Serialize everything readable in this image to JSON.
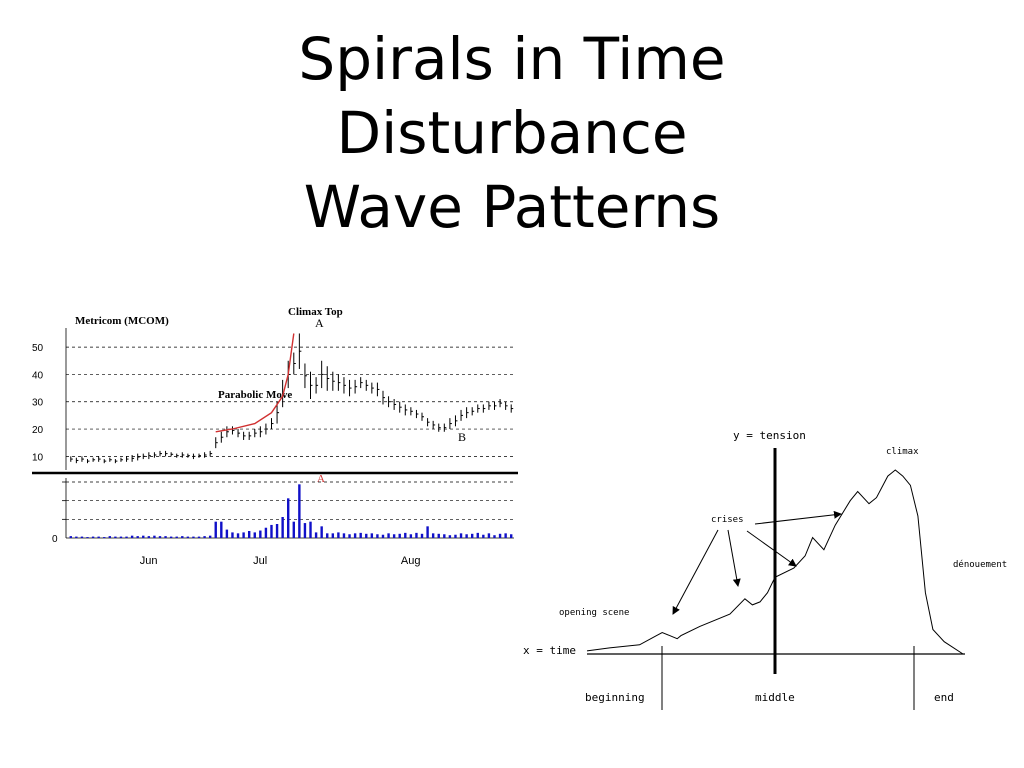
{
  "slide": {
    "title_lines": [
      "Spirals in Time",
      "Disturbance",
      "Wave Patterns"
    ]
  },
  "colors": {
    "price_bars": "#000000",
    "parabolic_curve": "#d03030",
    "volume_bars": "#1010c8",
    "grid": "#000000",
    "annotation_red": "#d03030"
  },
  "chart_data": [
    {
      "type": "bar",
      "subtype": "stock price range chart with volume",
      "title": "Metricom (MCOM)",
      "ylim": [
        5,
        57
      ],
      "yticks": [
        10,
        20,
        30,
        40,
        50
      ],
      "xlabels": [
        "Jun",
        "Jul",
        "Aug"
      ],
      "grid": true,
      "annotations": {
        "climax_top": "Climax Top",
        "point_a": "A",
        "parabolic_move": "Parabolic Move",
        "point_b": "B",
        "volume_a": "A"
      },
      "price_series": [
        [
          8,
          10
        ],
        [
          7.5,
          9.5
        ],
        [
          8,
          10
        ],
        [
          7.5,
          9
        ],
        [
          8,
          9.5
        ],
        [
          8,
          10
        ],
        [
          7.5,
          9
        ],
        [
          8,
          9.5
        ],
        [
          7.5,
          9
        ],
        [
          8,
          9.5
        ],
        [
          8,
          10
        ],
        [
          8,
          10.5
        ],
        [
          8.5,
          11
        ],
        [
          9,
          11
        ],
        [
          9,
          11.5
        ],
        [
          9.5,
          11.5
        ],
        [
          10,
          12
        ],
        [
          10,
          12
        ],
        [
          10,
          11.5
        ],
        [
          9.5,
          11
        ],
        [
          9.5,
          11.5
        ],
        [
          9.5,
          11
        ],
        [
          9,
          11
        ],
        [
          9.5,
          11
        ],
        [
          9.5,
          11.5
        ],
        [
          10,
          12
        ],
        [
          13,
          17
        ],
        [
          15,
          19
        ],
        [
          17,
          21
        ],
        [
          18,
          21
        ],
        [
          17,
          20
        ],
        [
          16,
          19
        ],
        [
          16,
          19
        ],
        [
          17,
          20
        ],
        [
          17,
          21
        ],
        [
          18,
          22
        ],
        [
          20,
          24
        ],
        [
          22,
          30
        ],
        [
          28,
          38
        ],
        [
          35,
          45
        ],
        [
          40,
          48
        ],
        [
          42,
          55
        ],
        [
          35,
          44
        ],
        [
          31,
          41
        ],
        [
          33,
          39
        ],
        [
          35,
          45
        ],
        [
          34,
          43
        ],
        [
          34,
          41
        ],
        [
          34,
          40
        ],
        [
          33,
          39
        ],
        [
          32,
          38
        ],
        [
          33,
          38
        ],
        [
          35,
          39
        ],
        [
          34,
          38
        ],
        [
          33,
          37
        ],
        [
          32,
          37
        ],
        [
          29,
          34
        ],
        [
          28,
          32
        ],
        [
          27,
          31
        ],
        [
          26,
          30
        ],
        [
          25,
          29
        ],
        [
          25,
          28
        ],
        [
          24,
          27
        ],
        [
          23,
          26
        ],
        [
          21,
          24
        ],
        [
          20,
          23
        ],
        [
          19,
          22
        ],
        [
          19,
          22
        ],
        [
          20,
          24
        ],
        [
          21,
          25
        ],
        [
          23,
          27
        ],
        [
          24,
          28
        ],
        [
          25,
          28
        ],
        [
          26,
          29
        ],
        [
          26,
          29
        ],
        [
          27,
          30
        ],
        [
          27,
          30
        ],
        [
          28,
          31
        ],
        [
          27,
          30
        ],
        [
          26,
          29
        ]
      ],
      "parabolic_curve_points": [
        [
          19,
          26
        ],
        [
          20,
          29
        ],
        [
          22,
          33
        ],
        [
          26,
          36
        ],
        [
          32,
          38
        ],
        [
          40,
          39
        ],
        [
          55,
          40
        ]
      ],
      "volume_ylim": [
        0,
        12
      ],
      "volume_series": [
        0.4,
        0.3,
        0.3,
        0.2,
        0.3,
        0.3,
        0.2,
        0.4,
        0.3,
        0.3,
        0.3,
        0.5,
        0.4,
        0.5,
        0.4,
        0.5,
        0.4,
        0.4,
        0.3,
        0.3,
        0.4,
        0.3,
        0.3,
        0.3,
        0.4,
        0.5,
        3.5,
        3.5,
        1.8,
        1.2,
        1.0,
        1.2,
        1.5,
        1.2,
        1.6,
        2.2,
        2.8,
        3.0,
        4.5,
        8.5,
        3.5,
        11.5,
        3.2,
        3.5,
        1.2,
        2.5,
        1.0,
        1.0,
        1.2,
        1.0,
        0.8,
        1.0,
        1.1,
        0.9,
        1.0,
        0.8,
        0.7,
        1.0,
        0.8,
        0.9,
        1.1,
        0.8,
        1.1,
        0.9,
        2.5,
        1.0,
        0.9,
        0.8,
        0.6,
        0.7,
        1.0,
        0.8,
        0.9,
        1.1,
        0.7,
        1.0,
        0.6,
        0.9,
        1.0,
        0.8
      ],
      "volume_ticks": [
        "0"
      ]
    },
    {
      "type": "line",
      "subtype": "dramatic structure curve",
      "xlabel": "x = time",
      "ylabel": "y = tension",
      "segment_labels": [
        "beginning",
        "middle",
        "end"
      ],
      "annotations": {
        "opening_scene": "opening scene",
        "crises": "crises",
        "climax": "climax",
        "denouement": "dénouement"
      },
      "x": [
        0,
        6,
        14,
        20,
        22,
        24,
        25,
        30,
        38,
        42,
        44,
        46,
        48,
        50,
        55,
        58,
        60,
        63,
        66,
        70,
        72,
        75,
        77,
        80,
        82,
        84,
        86,
        88,
        90,
        92,
        95,
        100
      ],
      "y": [
        1,
        2,
        3,
        7,
        6,
        5,
        6,
        9,
        13,
        18,
        16,
        17,
        20,
        25,
        28,
        32,
        38,
        34,
        42,
        50,
        53,
        49,
        51,
        58,
        60,
        58,
        55,
        45,
        20,
        8,
        4,
        0
      ]
    }
  ]
}
